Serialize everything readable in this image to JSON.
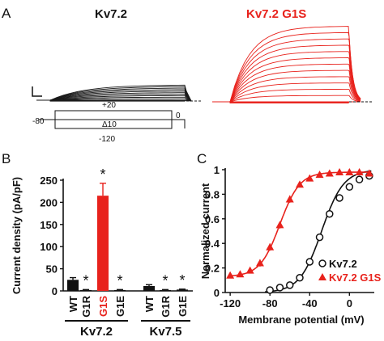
{
  "panels": {
    "a": "A",
    "b": "B",
    "c": "C"
  },
  "panel_a": {
    "title_left": "Kv7.2",
    "title_right": "Kv7.2 G1S",
    "protocol": {
      "hold": "-80",
      "top": "+20",
      "step": "Δ10",
      "bottom": "-120",
      "tail": "0"
    },
    "colors": {
      "wt": "#1a1a1a",
      "g1s": "#e8221c"
    }
  },
  "chart_data": [
    {
      "type": "bar",
      "panel": "B",
      "ylabel": "Current density (pA/pF)",
      "ylim": [
        0,
        250
      ],
      "yticks": [
        "0",
        "50",
        "100",
        "150",
        "200",
        "250"
      ],
      "categories": [
        "WT",
        "G1R",
        "G1S",
        "G1E",
        "WT",
        "G1R",
        "G1E"
      ],
      "values": [
        25,
        2,
        215,
        2,
        11,
        2,
        3
      ],
      "errors": [
        5,
        1,
        28,
        1,
        3,
        1,
        1
      ],
      "significance": [
        "",
        "*",
        "*",
        "*",
        "",
        "*",
        "*"
      ],
      "bar_colors": [
        "#111111",
        "#111111",
        "#e8221c",
        "#111111",
        "#111111",
        "#111111",
        "#111111"
      ],
      "groups": [
        {
          "name": "Kv7.2",
          "members": [
            0,
            1,
            2,
            3
          ]
        },
        {
          "name": "Kv7.5",
          "members": [
            4,
            5,
            6
          ]
        }
      ]
    },
    {
      "type": "scatter",
      "panel": "C",
      "xlabel": "Membrane potential (mV)",
      "ylabel": "Normalized current",
      "xlim": [
        -125,
        25
      ],
      "ylim": [
        0,
        1
      ],
      "xticks": [
        "-120",
        "-80",
        "-40",
        "0"
      ],
      "yticks": [
        "0",
        "0.2",
        "0.4",
        "0.6",
        "0.8",
        "1"
      ],
      "legend_position": "bottom-right",
      "series": [
        {
          "name": "Kv7.2",
          "marker": "open-circle",
          "color": "#111111",
          "x": [
            -80,
            -70,
            -60,
            -50,
            -40,
            -30,
            -20,
            -10,
            0,
            10,
            20
          ],
          "y": [
            0.02,
            0.04,
            0.06,
            0.12,
            0.25,
            0.45,
            0.64,
            0.77,
            0.86,
            0.92,
            0.95
          ],
          "err": [
            0.01,
            0.01,
            0.02,
            0.02,
            0.03,
            0.03,
            0.03,
            0.03,
            0.02,
            0.02,
            0.02
          ],
          "fit": {
            "v_half": -28,
            "k": 11
          }
        },
        {
          "name": "Kv7.2 G1S",
          "marker": "filled-triangle",
          "color": "#e8221c",
          "x": [
            -120,
            -110,
            -100,
            -90,
            -80,
            -70,
            -60,
            -50,
            -40,
            -30,
            -20,
            -10,
            0,
            10,
            20
          ],
          "y": [
            0.14,
            0.15,
            0.18,
            0.24,
            0.37,
            0.55,
            0.76,
            0.88,
            0.93,
            0.96,
            0.97,
            0.98,
            0.98,
            0.98,
            0.97
          ],
          "err": [
            0.02,
            0.02,
            0.02,
            0.03,
            0.03,
            0.03,
            0.03,
            0.02,
            0.02,
            0.01,
            0.01,
            0.01,
            0.01,
            0.01,
            0.01
          ],
          "fit": {
            "v_half": -70,
            "k": 10,
            "bottom": 0.13,
            "top": 0.98
          }
        }
      ]
    }
  ]
}
